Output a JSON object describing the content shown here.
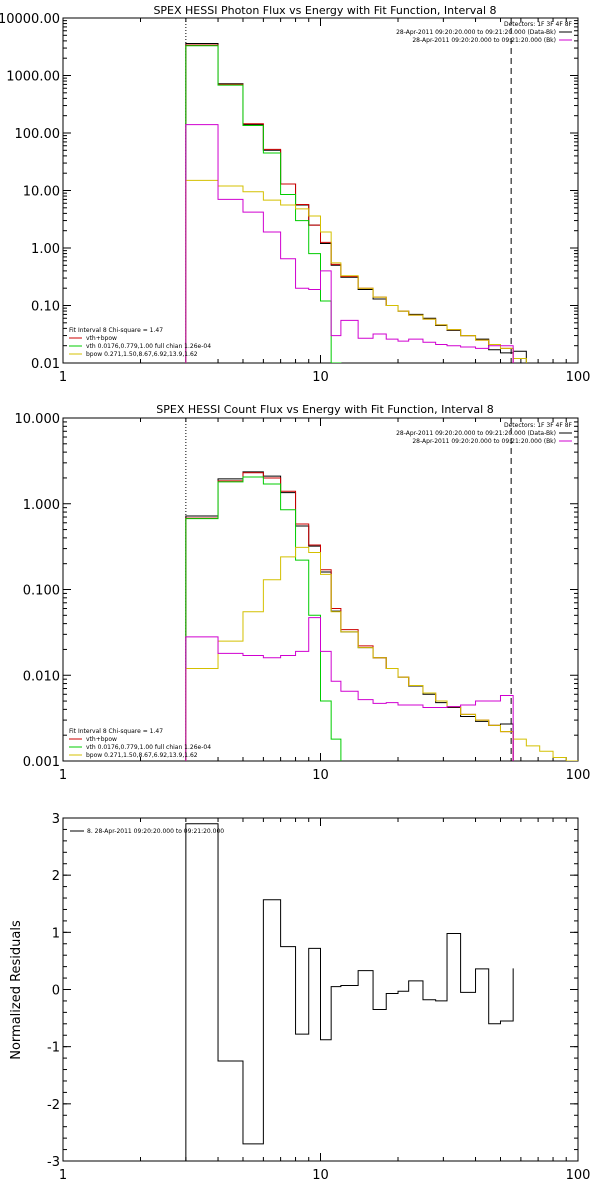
{
  "chart_data": [
    {
      "type": "line",
      "title": "SPEX HESSI Photon Flux vs Energy with Fit Function, Interval 8",
      "xscale": "log",
      "yscale": "log",
      "xlim": [
        1,
        100
      ],
      "ylim": [
        0.01,
        10000
      ],
      "xticks": [
        {
          "v": 1,
          "label": "1"
        },
        {
          "v": 10,
          "label": "10"
        },
        {
          "v": 100,
          "label": "100"
        }
      ],
      "yticks": [
        {
          "v": 10000,
          "label": "10000.00"
        },
        {
          "v": 1000,
          "label": "1000.00"
        },
        {
          "v": 100,
          "label": "100.00"
        },
        {
          "v": 10,
          "label": "10.00"
        },
        {
          "v": 1,
          "label": "1.00"
        },
        {
          "v": 0.1,
          "label": "0.10"
        },
        {
          "v": 0.01,
          "label": "0.01"
        }
      ],
      "vlines": [
        {
          "x": 3.0,
          "style": "dotted"
        },
        {
          "x": 55,
          "style": "dashed"
        }
      ],
      "legend_top": {
        "header": "Detectors: 1F 3F 4F 8F",
        "entries": [
          {
            "text": "28-Apr-2011 09:20:20.000 to 09:21:20.000 (Data-Bk)",
            "color": "#000000"
          },
          {
            "text": "28-Apr-2011 09:20:20.000 to 09:21:20.000 (Bk)",
            "color": "#d000d0"
          }
        ]
      },
      "legend_bottom": {
        "header": "Fit Interval 8   Chi-square = 1.47",
        "entries": [
          {
            "text": "vth+bpow",
            "color": "#cc0000"
          },
          {
            "text": "vth 0.0176,0.779,1.00  full chian 1.26e-04",
            "color": "#00cc00"
          },
          {
            "text": "bpow 0.271,1.50,8.67,6.92,13.9,1.62",
            "color": "#d4c000"
          }
        ]
      },
      "edges": [
        3.0,
        4.0,
        5.0,
        6.0,
        7.0,
        8.0,
        9.0,
        10.0,
        11.0,
        12.0,
        14.0,
        16.0,
        18.0,
        20.0,
        22.0,
        25.0,
        28.0,
        31.0,
        35.0,
        40.0,
        45.0,
        50.0,
        56.0,
        63.0
      ],
      "series": [
        {
          "name": "Data-Bk",
          "color": "#000000",
          "values": [
            3600,
            720,
            140,
            50,
            13,
            5.6,
            2.5,
            1.2,
            0.5,
            0.31,
            0.19,
            0.13,
            0.1,
            0.08,
            0.07,
            0.06,
            0.045,
            0.037,
            0.03,
            0.026,
            0.017,
            0.015,
            0.016
          ]
        },
        {
          "name": "vth+bpow",
          "color": "#cc0000",
          "values": [
            3400,
            700,
            145,
            52,
            13,
            5.7,
            2.5,
            1.25,
            0.52,
            0.32,
            0.2,
            0.14,
            0.1,
            0.08,
            0.068,
            0.058,
            0.046,
            0.038,
            0.03,
            0.025,
            0.021,
            0.018,
            null
          ]
        },
        {
          "name": "vth",
          "color": "#00cc00",
          "values": [
            3300,
            680,
            135,
            45,
            8.5,
            3.0,
            0.8,
            0.12,
            0.01,
            null,
            null,
            null,
            null,
            null,
            null,
            null,
            null,
            null,
            null,
            null,
            null,
            null,
            null
          ]
        },
        {
          "name": "bpow",
          "color": "#d4c000",
          "values": [
            15,
            12,
            9.5,
            6.8,
            5.6,
            4.8,
            3.6,
            1.9,
            0.55,
            0.33,
            0.2,
            0.14,
            0.1,
            0.08,
            0.068,
            0.058,
            0.046,
            0.038,
            0.03,
            0.025,
            0.021,
            0.018,
            0.012
          ]
        },
        {
          "name": "Bk",
          "color": "#d000d0",
          "values": [
            140,
            7,
            4.2,
            1.9,
            0.65,
            0.2,
            0.19,
            0.4,
            0.03,
            0.055,
            0.027,
            0.032,
            0.026,
            0.024,
            0.026,
            0.023,
            0.021,
            0.02,
            0.019,
            0.018,
            0.02,
            0.02,
            null
          ]
        }
      ]
    },
    {
      "type": "line",
      "title": "SPEX HESSI Count Flux vs Energy with Fit Function, Interval 8",
      "xscale": "log",
      "yscale": "log",
      "xlim": [
        1,
        100
      ],
      "ylim": [
        0.001,
        10
      ],
      "xticks": [
        {
          "v": 1,
          "label": "1"
        },
        {
          "v": 10,
          "label": "10"
        },
        {
          "v": 100,
          "label": "100"
        }
      ],
      "yticks": [
        {
          "v": 10,
          "label": "10.000"
        },
        {
          "v": 1,
          "label": "1.000"
        },
        {
          "v": 0.1,
          "label": "0.100"
        },
        {
          "v": 0.01,
          "label": "0.010"
        },
        {
          "v": 0.001,
          "label": "0.001"
        }
      ],
      "vlines": [
        {
          "x": 3.0,
          "style": "dotted"
        },
        {
          "x": 55,
          "style": "dashed"
        }
      ],
      "legend_top": {
        "header": "Detectors: 1F 3F 4F 8F",
        "entries": [
          {
            "text": "28-Apr-2011 09:20:20.000 to 09:21:20.000 (Data-Bk)",
            "color": "#000000"
          },
          {
            "text": "28-Apr-2011 09:20:20.000 to 09:21:20.000 (Bk)",
            "color": "#d000d0"
          }
        ]
      },
      "legend_bottom": {
        "header": "Fit Interval 8   Chi-square = 1.47",
        "entries": [
          {
            "text": "vth+bpow",
            "color": "#cc0000"
          },
          {
            "text": "vth 0.0176,0.779,1.00  full chian 1.26e-04",
            "color": "#00cc00"
          },
          {
            "text": "bpow 0.271,1.50,8.67,6.92,13.9,1.62",
            "color": "#d4c000"
          }
        ]
      },
      "edges": [
        3.0,
        4.0,
        5.0,
        6.0,
        7.0,
        8.0,
        9.0,
        10.0,
        11.0,
        12.0,
        14.0,
        16.0,
        18.0,
        20.0,
        22.0,
        25.0,
        28.0,
        31.0,
        35.0,
        40.0,
        45.0,
        50.0,
        56.0,
        63.0,
        71.0,
        80.0,
        90.0,
        100.0
      ],
      "series": [
        {
          "name": "Data-Bk",
          "color": "#000000",
          "values": [
            0.72,
            1.95,
            2.35,
            2.1,
            1.35,
            0.55,
            0.32,
            0.16,
            0.056,
            0.032,
            0.021,
            0.016,
            0.012,
            0.0095,
            0.0075,
            0.006,
            0.0048,
            0.0042,
            0.0033,
            0.0029,
            0.0026,
            0.0027,
            null,
            null,
            null,
            null,
            null
          ]
        },
        {
          "name": "vth+bpow",
          "color": "#cc0000",
          "values": [
            0.68,
            1.85,
            2.3,
            2.0,
            1.4,
            0.58,
            0.33,
            0.17,
            0.06,
            0.034,
            0.022,
            0.016,
            0.012,
            0.0095,
            0.0076,
            0.0062,
            0.005,
            0.0043,
            0.0035,
            0.003,
            0.0026,
            0.0022,
            null,
            null,
            null,
            null,
            null
          ]
        },
        {
          "name": "vth",
          "color": "#00cc00",
          "values": [
            0.67,
            1.8,
            2.05,
            1.7,
            0.85,
            0.22,
            0.05,
            0.005,
            0.0018,
            null,
            null,
            null,
            null,
            null,
            null,
            null,
            null,
            null,
            null,
            null,
            null,
            null,
            null,
            null,
            null,
            null,
            null
          ]
        },
        {
          "name": "bpow",
          "color": "#d4c000",
          "values": [
            0.012,
            0.025,
            0.055,
            0.13,
            0.24,
            0.31,
            0.27,
            0.15,
            0.055,
            0.032,
            0.021,
            0.016,
            0.012,
            0.0095,
            0.0076,
            0.0062,
            0.005,
            0.0043,
            0.0035,
            0.003,
            0.0026,
            0.0022,
            0.0018,
            0.0015,
            0.0013,
            0.0011,
            0.001
          ]
        },
        {
          "name": "Bk",
          "color": "#d000d0",
          "values": [
            0.028,
            0.018,
            0.017,
            0.016,
            0.017,
            0.019,
            0.047,
            0.019,
            0.0085,
            0.0065,
            0.0052,
            0.0047,
            0.0048,
            0.0045,
            0.0045,
            0.0042,
            0.0042,
            0.0043,
            0.0045,
            0.005,
            0.005,
            0.0058,
            null,
            null,
            null,
            null,
            null
          ]
        }
      ]
    },
    {
      "type": "line",
      "ylabel": "Normalized Residuals",
      "xscale": "log",
      "yscale": "linear",
      "xlim": [
        1,
        100
      ],
      "ylim": [
        -3,
        3
      ],
      "xticks": [
        {
          "v": 1,
          "label": "1"
        },
        {
          "v": 10,
          "label": "10"
        },
        {
          "v": 100,
          "label": "100"
        }
      ],
      "yticks": [
        {
          "v": 3,
          "label": "3"
        },
        {
          "v": 2,
          "label": "2"
        },
        {
          "v": 1,
          "label": "1"
        },
        {
          "v": 0,
          "label": "0"
        },
        {
          "v": -1,
          "label": "-1"
        },
        {
          "v": -2,
          "label": "-2"
        },
        {
          "v": -3,
          "label": "-3"
        }
      ],
      "legend_top_left": "8. 28-Apr-2011 09:20:20.000 to 09:21:20.000",
      "edges": [
        3.0,
        4.0,
        5.0,
        6.0,
        7.0,
        8.0,
        9.0,
        10.0,
        11.0,
        12.0,
        14.0,
        16.0,
        18.0,
        20.0,
        22.0,
        25.0,
        28.0,
        31.0,
        35.0,
        40.0,
        45.0,
        50.0,
        56.0
      ],
      "series": [
        {
          "name": "",
          "color": "#000000",
          "values": [
            2.9,
            -1.25,
            -2.7,
            1.57,
            0.75,
            -0.78,
            0.72,
            -0.88,
            0.05,
            0.07,
            0.33,
            -0.35,
            -0.07,
            -0.03,
            0.15,
            -0.18,
            -0.2,
            0.98,
            -0.05,
            0.36,
            -0.6,
            -0.55,
            0.37
          ]
        }
      ]
    }
  ]
}
